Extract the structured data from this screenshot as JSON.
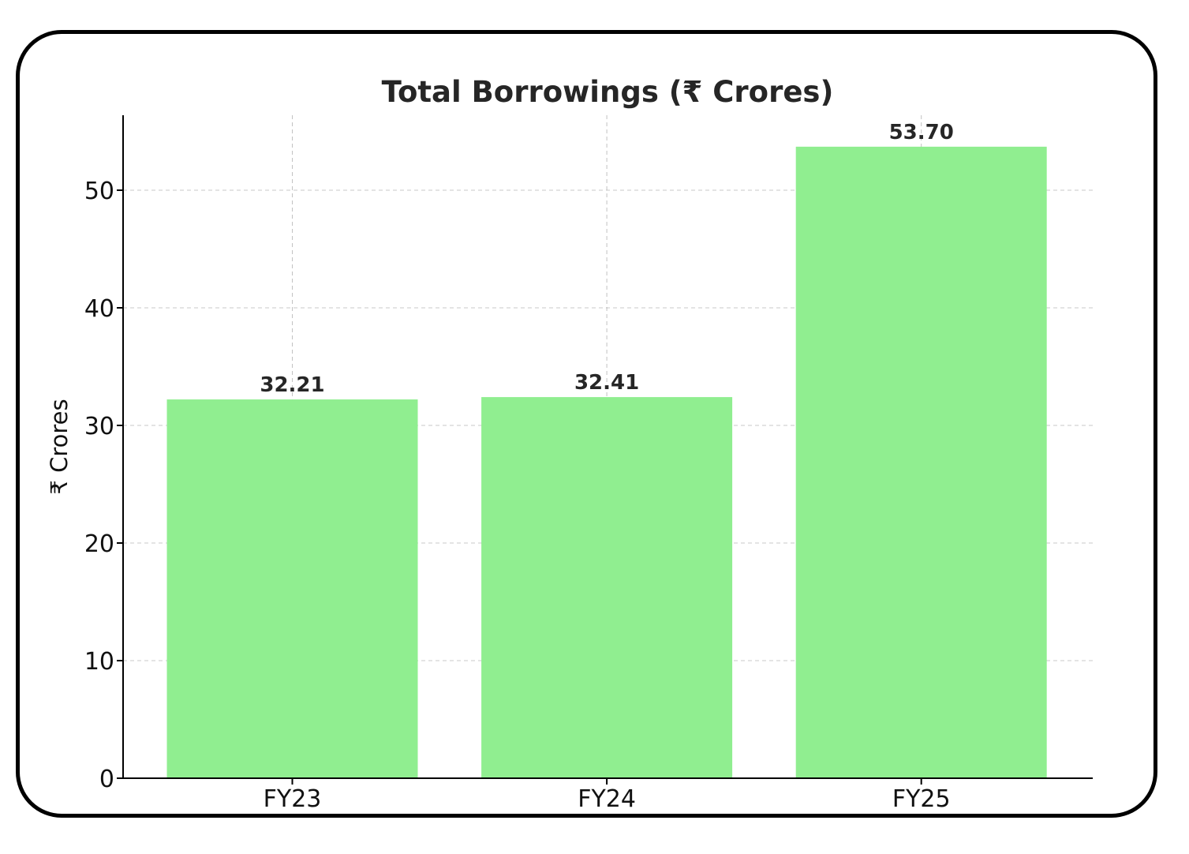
{
  "chart_data": {
    "type": "bar",
    "title": "Total Borrowings (₹ Crores)",
    "xlabel": "",
    "ylabel": "₹ Crores",
    "categories": [
      "FY23",
      "FY24",
      "FY25"
    ],
    "values": [
      32.21,
      32.41,
      53.7
    ],
    "value_labels": [
      "32.21",
      "32.41",
      "53.70"
    ],
    "ylim": [
      0,
      56.4
    ],
    "yticks": [
      0,
      10,
      20,
      30,
      40,
      50
    ],
    "grid": true,
    "bar_color": "#90EE90",
    "text_color": "#262626"
  }
}
